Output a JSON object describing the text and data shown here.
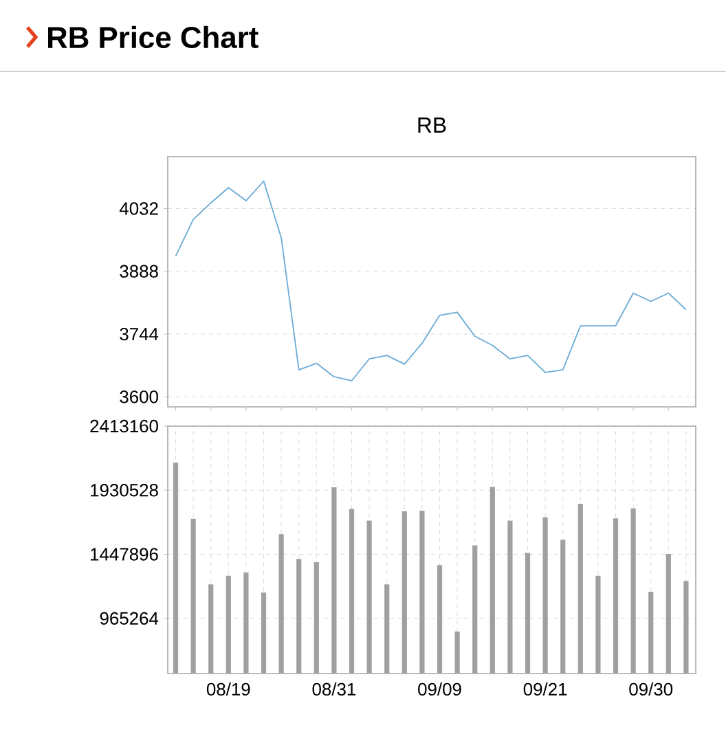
{
  "chart_data": [
    {
      "type": "line",
      "title": "RB Price Chart",
      "subtitle": "RB",
      "categories": [
        null,
        null,
        null,
        null,
        null,
        null,
        null,
        null,
        null,
        null,
        null,
        null,
        null,
        null,
        null,
        null,
        null,
        null,
        null,
        null,
        null,
        null,
        null,
        null,
        null,
        null,
        null,
        null,
        null,
        null
      ],
      "values": [
        3923,
        4007,
        4045,
        4080,
        4050,
        4095,
        3965,
        3662,
        3677,
        3646,
        3637,
        3687,
        3695,
        3675,
        3723,
        3787,
        3794,
        3739,
        3718,
        3687,
        3695,
        3656,
        3662,
        3763,
        3763,
        3763,
        3838,
        3819,
        3838,
        3800
      ],
      "color": "#6aaad6",
      "ylim": [
        3577,
        4151
      ],
      "yticks": [
        3600,
        3744,
        3888,
        4032
      ],
      "grid": "y",
      "tick_labels": "y"
    },
    {
      "type": "bar",
      "categories": [
        null,
        null,
        null,
        "08/19",
        null,
        null,
        null,
        null,
        null,
        "08/31",
        null,
        null,
        null,
        null,
        null,
        "09/09",
        null,
        null,
        null,
        null,
        null,
        "09/21",
        null,
        null,
        null,
        null,
        null,
        "09/30",
        null,
        null
      ],
      "values": [
        2138000,
        1716000,
        1222000,
        1286000,
        1311000,
        1159000,
        1599000,
        1413000,
        1388000,
        1952000,
        1790000,
        1702000,
        1222000,
        1772000,
        1776000,
        1367000,
        867000,
        1515000,
        1955000,
        1702000,
        1458000,
        1726000,
        1557000,
        1828000,
        1286000,
        1719000,
        1793000,
        1166000,
        1451000,
        1247000
      ],
      "color": "#a0a0a0",
      "ylim": [
        550000,
        2413160
      ],
      "yticks": [
        965264,
        1447896,
        1930528,
        2413160
      ],
      "grid": true
    }
  ]
}
